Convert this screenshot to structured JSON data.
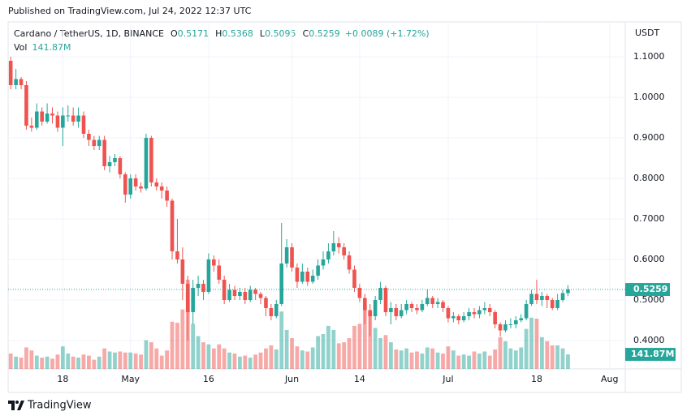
{
  "chart_data": {
    "type": "candlestick",
    "published": "Published on TradingView.com, Jul 24, 2022 12:37 UTC",
    "title": "Cardano / TetherUS, 1D, BINANCE",
    "ohlc_prefixes": [
      "O",
      "H",
      "L",
      "C"
    ],
    "change_label": "+0.0089 (+1.72%)",
    "volume_title": "Vol",
    "volume_label": "141.87M",
    "y_axis_label": "USDT",
    "brand": "TradingView",
    "up_color": "#26a69a",
    "down_color": "#ef5350",
    "open": [
      1.09,
      1.03,
      1.045,
      1.03,
      0.93,
      0.925,
      0.965,
      0.94,
      0.96,
      0.955,
      0.925,
      0.955,
      0.955,
      0.94,
      0.955,
      0.91,
      0.895,
      0.88,
      0.895,
      0.83,
      0.84,
      0.85,
      0.81,
      0.76,
      0.8,
      0.78,
      0.775,
      0.9,
      0.79,
      0.78,
      0.77,
      0.745,
      0.62,
      0.6,
      0.54,
      0.47,
      0.53,
      0.54,
      0.52,
      0.6,
      0.585,
      0.55,
      0.5,
      0.525,
      0.51,
      0.52,
      0.5,
      0.525,
      0.515,
      0.505,
      0.48,
      0.46,
      0.49,
      0.59,
      0.63,
      0.58,
      0.545,
      0.57,
      0.545,
      0.56,
      0.585,
      0.6,
      0.62,
      0.64,
      0.63,
      0.61,
      0.575,
      0.53,
      0.505,
      0.475,
      0.46,
      0.5,
      0.53,
      0.47,
      0.48,
      0.46,
      0.475,
      0.49,
      0.48,
      0.475,
      0.49,
      0.505,
      0.49,
      0.495,
      0.48,
      0.455,
      0.46,
      0.45,
      0.46,
      0.47,
      0.465,
      0.475,
      0.48,
      0.47,
      0.44,
      0.425,
      0.44,
      0.44,
      0.45,
      0.455,
      0.49,
      0.515,
      0.5,
      0.51,
      0.5,
      0.48,
      0.5,
      0.5171
    ],
    "high": [
      1.1,
      1.07,
      1.05,
      1.04,
      0.95,
      0.985,
      0.975,
      0.985,
      0.975,
      0.965,
      0.975,
      0.98,
      0.975,
      0.975,
      0.965,
      0.92,
      0.905,
      0.905,
      0.905,
      0.855,
      0.86,
      0.855,
      0.815,
      0.81,
      0.81,
      0.79,
      0.91,
      0.905,
      0.8,
      0.79,
      0.78,
      0.75,
      0.7,
      0.63,
      0.56,
      0.55,
      0.56,
      0.55,
      0.615,
      0.61,
      0.6,
      0.56,
      0.54,
      0.535,
      0.53,
      0.53,
      0.535,
      0.53,
      0.52,
      0.51,
      0.49,
      0.5,
      0.69,
      0.65,
      0.64,
      0.59,
      0.59,
      0.58,
      0.575,
      0.6,
      0.62,
      0.64,
      0.67,
      0.655,
      0.64,
      0.62,
      0.585,
      0.54,
      0.515,
      0.49,
      0.51,
      0.545,
      0.535,
      0.495,
      0.49,
      0.49,
      0.5,
      0.495,
      0.49,
      0.5,
      0.525,
      0.51,
      0.505,
      0.5,
      0.485,
      0.47,
      0.465,
      0.47,
      0.48,
      0.48,
      0.485,
      0.495,
      0.49,
      0.475,
      0.445,
      0.45,
      0.455,
      0.46,
      0.465,
      0.5,
      0.525,
      0.55,
      0.52,
      0.515,
      0.505,
      0.515,
      0.525,
      0.5368
    ],
    "low": [
      1.02,
      1.02,
      1.02,
      0.92,
      0.915,
      0.92,
      0.93,
      0.935,
      0.935,
      0.915,
      0.88,
      0.94,
      0.93,
      0.925,
      0.9,
      0.88,
      0.87,
      0.87,
      0.82,
      0.815,
      0.83,
      0.8,
      0.74,
      0.75,
      0.77,
      0.765,
      0.77,
      0.78,
      0.77,
      0.75,
      0.73,
      0.6,
      0.59,
      0.5,
      0.4,
      0.44,
      0.51,
      0.5,
      0.515,
      0.57,
      0.54,
      0.49,
      0.495,
      0.5,
      0.5,
      0.49,
      0.495,
      0.5,
      0.49,
      0.46,
      0.45,
      0.455,
      0.485,
      0.58,
      0.57,
      0.53,
      0.54,
      0.535,
      0.54,
      0.55,
      0.575,
      0.59,
      0.61,
      0.615,
      0.6,
      0.565,
      0.52,
      0.495,
      0.44,
      0.41,
      0.45,
      0.49,
      0.46,
      0.44,
      0.45,
      0.455,
      0.465,
      0.47,
      0.465,
      0.47,
      0.485,
      0.48,
      0.48,
      0.47,
      0.445,
      0.445,
      0.44,
      0.445,
      0.45,
      0.455,
      0.455,
      0.465,
      0.46,
      0.43,
      0.41,
      0.42,
      0.43,
      0.43,
      0.445,
      0.45,
      0.485,
      0.49,
      0.485,
      0.48,
      0.475,
      0.475,
      0.495,
      0.5095
    ],
    "close": [
      1.03,
      1.045,
      1.03,
      0.93,
      0.925,
      0.965,
      0.94,
      0.96,
      0.955,
      0.925,
      0.955,
      0.955,
      0.94,
      0.955,
      0.91,
      0.895,
      0.88,
      0.895,
      0.83,
      0.84,
      0.85,
      0.81,
      0.76,
      0.8,
      0.78,
      0.775,
      0.9,
      0.79,
      0.78,
      0.77,
      0.745,
      0.62,
      0.6,
      0.54,
      0.47,
      0.53,
      0.54,
      0.52,
      0.6,
      0.585,
      0.55,
      0.5,
      0.525,
      0.51,
      0.52,
      0.5,
      0.525,
      0.515,
      0.505,
      0.48,
      0.46,
      0.49,
      0.59,
      0.63,
      0.58,
      0.545,
      0.57,
      0.545,
      0.56,
      0.585,
      0.6,
      0.62,
      0.64,
      0.63,
      0.61,
      0.575,
      0.53,
      0.505,
      0.475,
      0.46,
      0.5,
      0.53,
      0.47,
      0.48,
      0.46,
      0.475,
      0.49,
      0.48,
      0.475,
      0.49,
      0.505,
      0.49,
      0.495,
      0.48,
      0.455,
      0.46,
      0.45,
      0.46,
      0.47,
      0.465,
      0.475,
      0.48,
      0.47,
      0.44,
      0.425,
      0.44,
      0.44,
      0.45,
      0.455,
      0.49,
      0.515,
      0.5,
      0.51,
      0.5,
      0.48,
      0.5,
      0.517,
      0.5259
    ],
    "volume": [
      150,
      120,
      110,
      210,
      180,
      130,
      110,
      120,
      100,
      140,
      220,
      150,
      120,
      110,
      140,
      130,
      90,
      120,
      200,
      170,
      160,
      170,
      160,
      160,
      150,
      140,
      280,
      260,
      200,
      130,
      180,
      460,
      450,
      580,
      870,
      440,
      320,
      260,
      240,
      200,
      240,
      200,
      160,
      150,
      120,
      130,
      110,
      140,
      160,
      200,
      230,
      190,
      560,
      380,
      300,
      220,
      180,
      170,
      210,
      320,
      340,
      420,
      380,
      250,
      260,
      300,
      420,
      440,
      620,
      560,
      400,
      300,
      330,
      260,
      190,
      180,
      200,
      160,
      170,
      150,
      210,
      200,
      160,
      150,
      220,
      180,
      130,
      140,
      130,
      170,
      150,
      170,
      130,
      190,
      310,
      270,
      200,
      180,
      210,
      390,
      500,
      490,
      310,
      270,
      230,
      230,
      200,
      141.87
    ],
    "xlim": [
      -0.5,
      118
    ],
    "xticks": [
      {
        "value": 10,
        "label": "18"
      },
      {
        "value": 23,
        "label": "May"
      },
      {
        "value": 38,
        "label": "16"
      },
      {
        "value": 54,
        "label": "Jun"
      },
      {
        "value": 67,
        "label": "14"
      },
      {
        "value": 84,
        "label": "Jul"
      },
      {
        "value": 101,
        "label": "18"
      },
      {
        "value": 115,
        "label": "Aug"
      }
    ],
    "ylim": [
      0.33,
      1.186
    ],
    "yticks": [
      {
        "value": 0.4,
        "label": "0.4000"
      },
      {
        "value": 0.5,
        "label": "0.5000"
      },
      {
        "value": 0.6,
        "label": "0.6000"
      },
      {
        "value": 0.7,
        "label": "0.7000"
      },
      {
        "value": 0.8,
        "label": "0.8000"
      },
      {
        "value": 0.9,
        "label": "0.9000"
      },
      {
        "value": 1.0,
        "label": "1.0000"
      },
      {
        "value": 1.1,
        "label": "1.1000"
      }
    ],
    "grid": true
  }
}
